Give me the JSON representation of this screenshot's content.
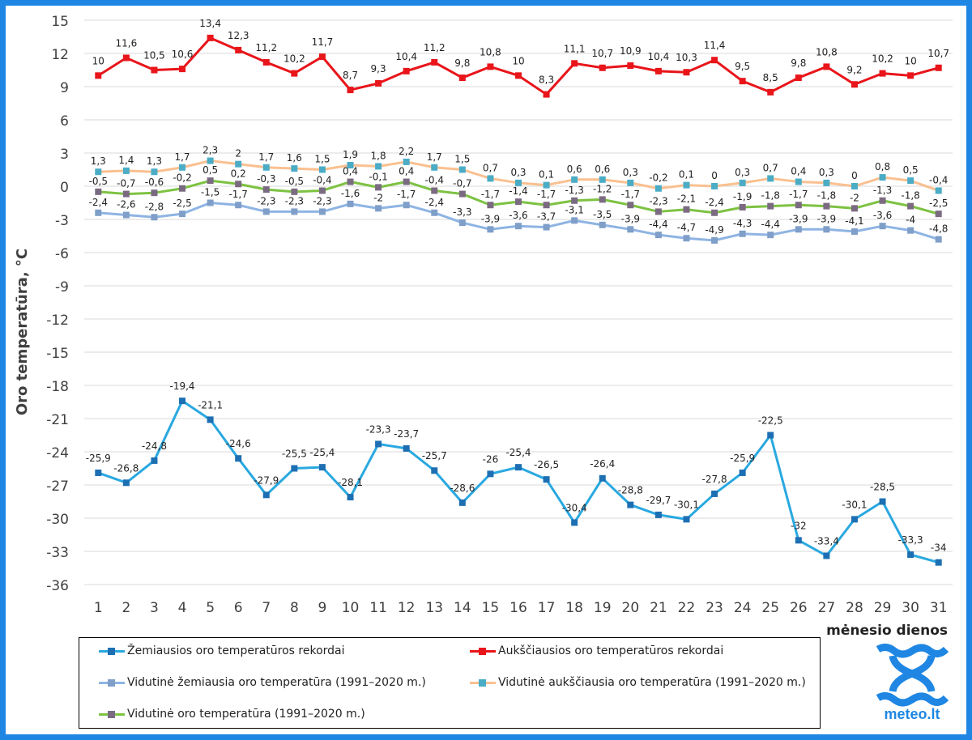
{
  "chart_data": {
    "type": "line",
    "title": "",
    "ylabel": "Oro temperatūra, °C",
    "xlabel": "mėnesio dienos",
    "ylim": [
      -36,
      15
    ],
    "yticks": [
      15,
      12,
      9,
      6,
      3,
      0,
      -3,
      -6,
      -9,
      -12,
      -15,
      -18,
      -21,
      -24,
      -27,
      -30,
      -33,
      -36
    ],
    "x": [
      "1",
      "2",
      "3",
      "4",
      "5",
      "6",
      "7",
      "8",
      "9",
      "10",
      "11",
      "12",
      "13",
      "14",
      "15",
      "16",
      "17",
      "18",
      "19",
      "20",
      "21",
      "22",
      "23",
      "24",
      "25",
      "26",
      "27",
      "28",
      "29",
      "30",
      "31"
    ],
    "grid": true,
    "legend_position": "bottom",
    "series": [
      {
        "name": "Žemiausios oro temperatūros rekordai",
        "color": "#29a8e0",
        "marker": "#1d6fb3",
        "values": [
          -25.9,
          -26.8,
          -24.8,
          -19.4,
          -21.1,
          -24.6,
          -27.9,
          -25.5,
          -25.4,
          -28.1,
          -23.3,
          -23.7,
          -25.7,
          -28.6,
          -26,
          -25.4,
          -26.5,
          -30.4,
          -26.4,
          -28.8,
          -29.7,
          -30.1,
          -27.8,
          -25.9,
          -22.5,
          -32,
          -33.4,
          -30.1,
          -28.5,
          -33.3,
          -34
        ],
        "labels": [
          "-25,9",
          "-26,8",
          "-24,8",
          "-19,4",
          "-21,1",
          "-24,6",
          "-27,9",
          "-25,5",
          "-25,4",
          "-28,1",
          "-23,3",
          "-23,7",
          "-25,7",
          "-28,6",
          "-26",
          "-25,4",
          "-26,5",
          "-30,4",
          "-26,4",
          "-28,8",
          "-29,7",
          "-30,1",
          "-27,8",
          "-25,9",
          "-22,5",
          "-32",
          "-33,4",
          "-30,1",
          "-28,5",
          "-33,3",
          "-34"
        ]
      },
      {
        "name": "Aukščiausios oro temperatūros rekordai",
        "color": "#e8151a",
        "marker": "#e8151a",
        "values": [
          10,
          11.6,
          10.5,
          10.6,
          13.4,
          12.3,
          11.2,
          10.2,
          11.7,
          8.7,
          9.3,
          10.4,
          11.2,
          9.8,
          10.8,
          10,
          8.3,
          11.1,
          10.7,
          10.9,
          10.4,
          10.3,
          11.4,
          9.5,
          8.5,
          9.8,
          10.8,
          9.2,
          10.2,
          10,
          10.7
        ],
        "labels": [
          "10",
          "11,6",
          "10,5",
          "10,6",
          "13,4",
          "12,3",
          "11,2",
          "10,2",
          "11,7",
          "8,7",
          "9,3",
          "10,4",
          "11,2",
          "9,8",
          "10,8",
          "10",
          "8,3",
          "11,1",
          "10,7",
          "10,9",
          "10,4",
          "10,3",
          "11,4",
          "9,5",
          "8,5",
          "9,8",
          "10,8",
          "9,2",
          "10,2",
          "10",
          "10,7"
        ]
      },
      {
        "name": "Vidutinė žemiausia oro temperatūra (1991–2020 m.)",
        "color": "#8eb4e3",
        "marker": "#7f9fc9",
        "values": [
          -2.4,
          -2.6,
          -2.8,
          -2.5,
          -1.5,
          -1.7,
          -2.3,
          -2.3,
          -2.3,
          -1.6,
          -2,
          -1.7,
          -2.4,
          -3.3,
          -3.9,
          -3.6,
          -3.7,
          -3.1,
          -3.5,
          -3.9,
          -4.4,
          -4.7,
          -4.9,
          -4.3,
          -4.4,
          -3.9,
          -3.9,
          -4.1,
          -3.6,
          -4,
          -4.8
        ],
        "labels": [
          "-2,4",
          "-2,6",
          "-2,8",
          "-2,5",
          "-1,5",
          "-1,7",
          "-2,3",
          "-2,3",
          "-2,3",
          "-1,6",
          "-2",
          "-1,7",
          "-2,4",
          "-3,3",
          "-3,9",
          "-3,6",
          "-3,7",
          "-3,1",
          "-3,5",
          "-3,9",
          "-4,4",
          "-4,7",
          "-4,9",
          "-4,3",
          "-4,4",
          "-3,9",
          "-3,9",
          "-4,1",
          "-3,6",
          "-4",
          "-4,8"
        ]
      },
      {
        "name": "Vidutinė aukščiausia oro temperatūra (1991–2020 m.)",
        "color": "#fac090",
        "marker": "#4bacc6",
        "values": [
          1.3,
          1.4,
          1.3,
          1.7,
          2.3,
          2,
          1.7,
          1.6,
          1.5,
          1.9,
          1.8,
          2.2,
          1.7,
          1.5,
          0.7,
          0.3,
          0.1,
          0.6,
          0.6,
          0.3,
          -0.2,
          0.1,
          0,
          0.3,
          0.7,
          0.4,
          0.3,
          0,
          0.8,
          0.5,
          -0.4
        ],
        "labels": [
          "1,3",
          "1,4",
          "1,3",
          "1,7",
          "2,3",
          "2",
          "1,7",
          "1,6",
          "1,5",
          "1,9",
          "1,8",
          "2,2",
          "1,7",
          "1,5",
          "0,7",
          "0,3",
          "0,1",
          "0,6",
          "0,6",
          "0,3",
          "-0,2",
          "0,1",
          "0",
          "0,3",
          "0,7",
          "0,4",
          "0,3",
          "0",
          "0,8",
          "0,5",
          "-0,4"
        ]
      },
      {
        "name": "Vidutinė oro temperatūra (1991–2020 m.)",
        "color": "#7dc242",
        "marker": "#7b6b82",
        "values": [
          -0.5,
          -0.7,
          -0.6,
          -0.2,
          0.5,
          0.2,
          -0.3,
          -0.5,
          -0.4,
          0.4,
          -0.1,
          0.4,
          -0.4,
          -0.7,
          -1.7,
          -1.4,
          -1.7,
          -1.3,
          -1.2,
          -1.7,
          -2.3,
          -2.1,
          -2.4,
          -1.9,
          -1.8,
          -1.7,
          -1.8,
          -2,
          -1.3,
          -1.8,
          -2.5
        ],
        "labels": [
          "-0,5",
          "-0,7",
          "-0,6",
          "-0,2",
          "0,5",
          "0,2",
          "-0,3",
          "-0,5",
          "-0,4",
          "0,4",
          "-0,1",
          "0,4",
          "-0,4",
          "-0,7",
          "-1,7",
          "-1,4",
          "-1,7",
          "-1,3",
          "-1,2",
          "-1,7",
          "-2,3",
          "-2,1",
          "-2,4",
          "-1,9",
          "-1,8",
          "-1,7",
          "-1,8",
          "-2",
          "-1,3",
          "-1,8",
          "-2,5"
        ]
      }
    ]
  },
  "logo": {
    "text": "meteo.lt"
  }
}
